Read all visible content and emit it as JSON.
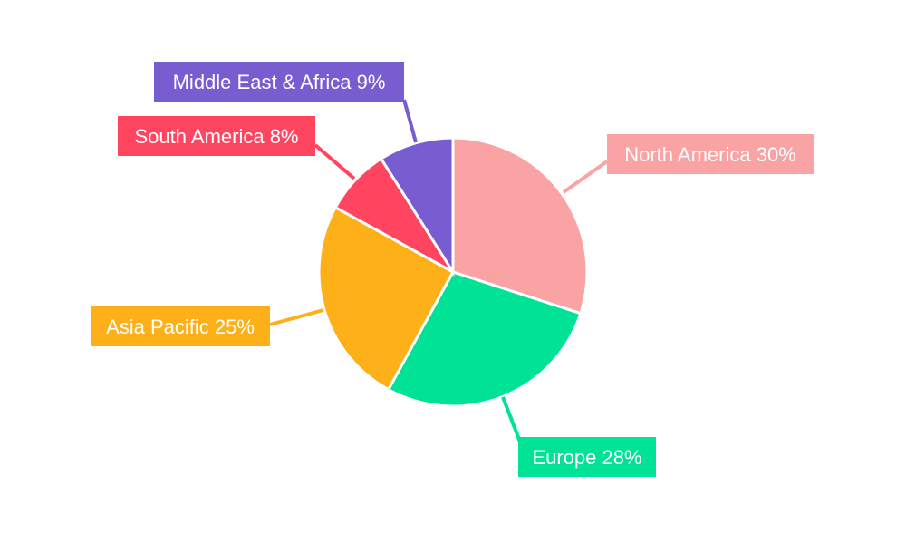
{
  "chart_data": {
    "type": "pie",
    "title": "",
    "start_angle": "12 o'clock, clockwise",
    "legend": "none (outside labels with leader lines)",
    "slices": [
      {
        "label": "North America",
        "value": 30,
        "text": "North America 30%",
        "color": "#F9A3A4"
      },
      {
        "label": "Europe",
        "value": 28,
        "text": "Europe 28%",
        "color": "#00E396"
      },
      {
        "label": "Asia Pacific",
        "value": 25,
        "text": "Asia Pacific 25%",
        "color": "#FEB019"
      },
      {
        "label": "South America",
        "value": 8,
        "text": "South America 8%",
        "color": "#FF4560"
      },
      {
        "label": "Middle East & Africa",
        "value": 9,
        "text": "Middle East & Africa 9%",
        "color": "#775DD0"
      }
    ]
  }
}
